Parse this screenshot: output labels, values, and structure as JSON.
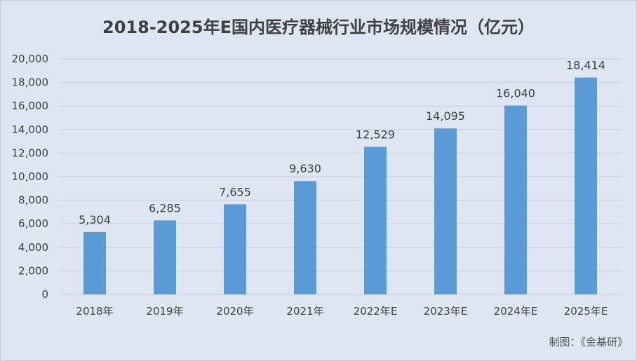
{
  "chart_data": {
    "type": "bar",
    "title": "2018-2025年E国内医疗器械行业市场规模情况（亿元）",
    "categories": [
      "2018年",
      "2019年",
      "2020年",
      "2021年",
      "2022年E",
      "2023年E",
      "2024年E",
      "2025年E"
    ],
    "values": [
      5304,
      6285,
      7655,
      9630,
      12529,
      14095,
      16040,
      18414
    ],
    "data_labels": [
      "5,304",
      "6,285",
      "7,655",
      "9,630",
      "12,529",
      "14,095",
      "16,040",
      "18,414"
    ],
    "ylim": [
      0,
      20000
    ],
    "yticks": [
      0,
      2000,
      4000,
      6000,
      8000,
      10000,
      12000,
      14000,
      16000,
      18000,
      20000
    ],
    "ytick_labels": [
      "0",
      "2,000",
      "4,000",
      "6,000",
      "8,000",
      "10,000",
      "12,000",
      "14,000",
      "16,000",
      "18,000",
      "20,000"
    ],
    "grid": true,
    "legend": "none",
    "bar_color": "#5b9bd5",
    "grid_color": "#c8d0da",
    "background": "#dde6f1"
  },
  "source_note": "制图：《金基研》"
}
